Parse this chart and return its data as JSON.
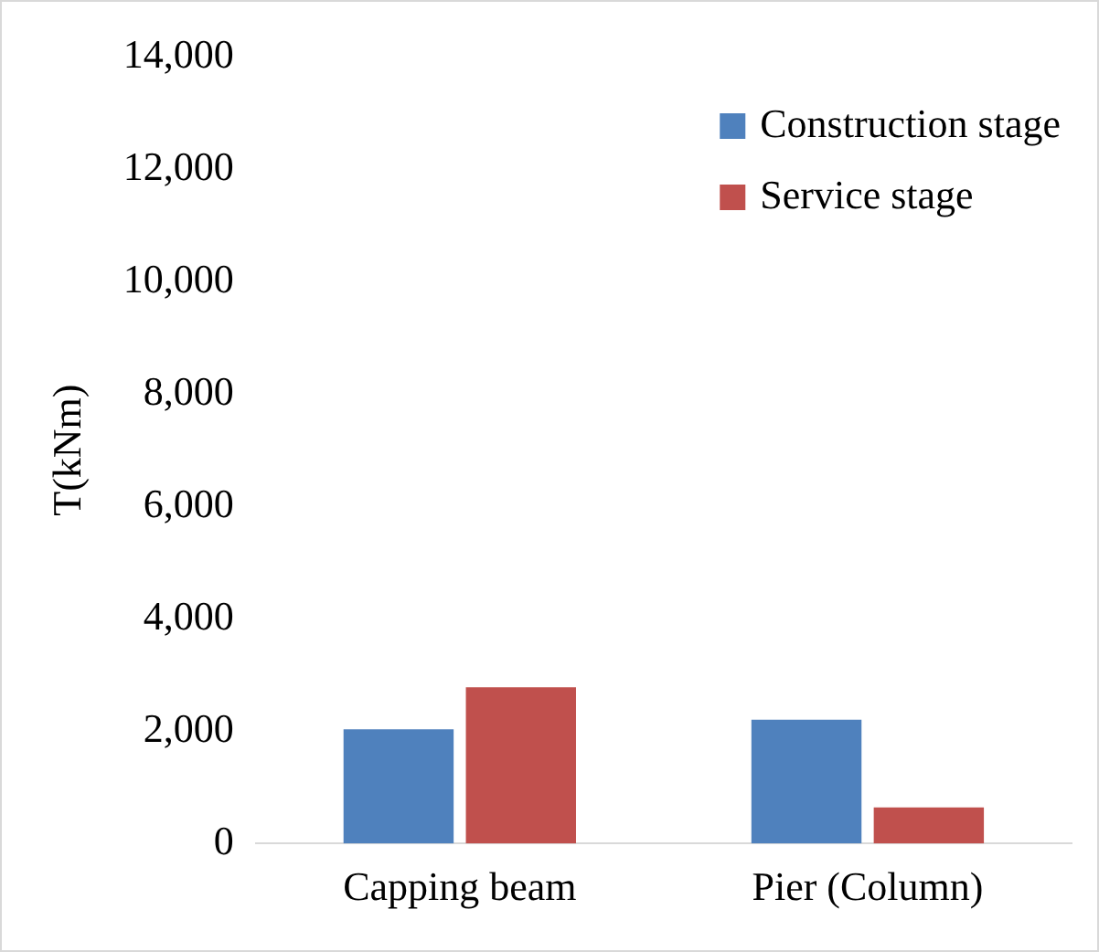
{
  "chart_data": {
    "type": "bar",
    "ylabel": "T(kNm)",
    "categories": [
      "Capping beam",
      "Pier (Column)"
    ],
    "series": [
      {
        "name": "Construction stage",
        "color": "#4f81bd",
        "values": [
          2030,
          2200
        ]
      },
      {
        "name": "Service stage",
        "color": "#c0504d",
        "values": [
          2780,
          640
        ]
      }
    ],
    "ylim": [
      0,
      14000
    ],
    "yticks": [
      {
        "value": 0,
        "label": "0"
      },
      {
        "value": 2000,
        "label": "2,000"
      },
      {
        "value": 4000,
        "label": "4,000"
      },
      {
        "value": 6000,
        "label": "6,000"
      },
      {
        "value": 8000,
        "label": "8,000"
      },
      {
        "value": 10000,
        "label": "10,000"
      },
      {
        "value": 12000,
        "label": "12,000"
      },
      {
        "value": 14000,
        "label": "14,000"
      }
    ],
    "grid": false,
    "legend": "top right"
  }
}
